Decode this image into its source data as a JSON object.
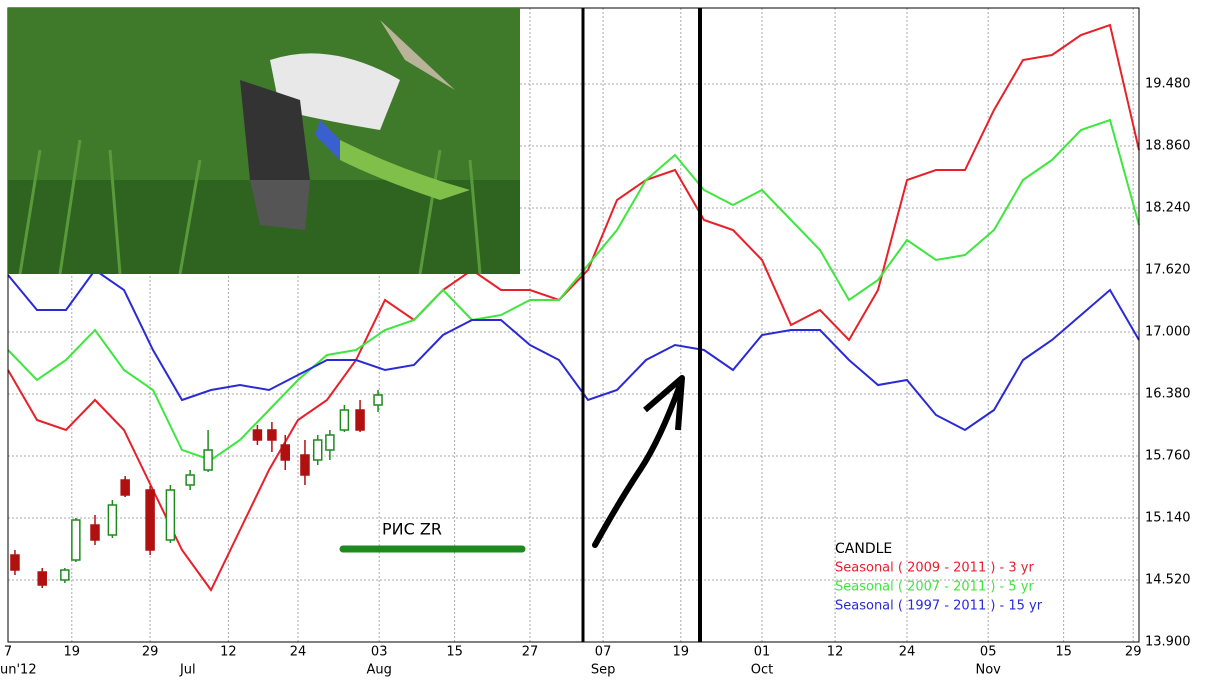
{
  "chart_data": {
    "type": "candlestick",
    "annotation": "РИС ZR",
    "legend_title": "CANDLE",
    "xlim": [
      0,
      195
    ],
    "xticks": [
      {
        "value": 0,
        "label": "7"
      },
      {
        "value": 11,
        "label": "19"
      },
      {
        "value": 24.5,
        "label": "29"
      },
      {
        "value": 38,
        "label": "12"
      },
      {
        "value": 50,
        "label": "24"
      },
      {
        "value": 64,
        "label": "03"
      },
      {
        "value": 77,
        "label": "15"
      },
      {
        "value": 90,
        "label": "27"
      },
      {
        "value": 102.6,
        "label": "07"
      },
      {
        "value": 116,
        "label": "19"
      },
      {
        "value": 130,
        "label": "01"
      },
      {
        "value": 142.6,
        "label": "12"
      },
      {
        "value": 155,
        "label": "24"
      },
      {
        "value": 169,
        "label": "05"
      },
      {
        "value": 182,
        "label": "15"
      },
      {
        "value": 194,
        "label": "29"
      }
    ],
    "months": [
      {
        "value": 0,
        "label": "un'12"
      },
      {
        "value": 31,
        "label": "Jul"
      },
      {
        "value": 64,
        "label": "Aug"
      },
      {
        "value": 102.6,
        "label": "Sep"
      },
      {
        "value": 130,
        "label": "Oct"
      },
      {
        "value": 169,
        "label": "Nov"
      }
    ],
    "ylim": [
      13.9,
      20.24
    ],
    "yticks": [
      {
        "value": 13.9,
        "label": "13.900"
      },
      {
        "value": 14.52,
        "label": "14.520"
      },
      {
        "value": 15.14,
        "label": "15.140"
      },
      {
        "value": 15.76,
        "label": "15.760"
      },
      {
        "value": 16.38,
        "label": "16.380"
      },
      {
        "value": 17.0,
        "label": "17.000"
      },
      {
        "value": 17.62,
        "label": "17.620"
      },
      {
        "value": 18.24,
        "label": "18.240"
      },
      {
        "value": 18.86,
        "label": "18.860"
      },
      {
        "value": 19.48,
        "label": "19.480"
      }
    ],
    "grid": true,
    "x": [
      0,
      5,
      10,
      15,
      20,
      25,
      30,
      35,
      40,
      45,
      50,
      55,
      60,
      65,
      70,
      75,
      80,
      85,
      90,
      95,
      100,
      105,
      110,
      115,
      120,
      125,
      130,
      135,
      140,
      145,
      150,
      155,
      160,
      165,
      170,
      175,
      180,
      185,
      190,
      195
    ],
    "series": [
      {
        "name": "Seasonal ( 2009 - 2011 ) - 3 yr",
        "color": "#e8202a",
        "values": [
          16.62,
          16.12,
          16.02,
          16.32,
          16.02,
          15.42,
          14.82,
          14.42,
          15.02,
          15.62,
          16.12,
          16.32,
          16.72,
          17.32,
          17.12,
          17.42,
          17.62,
          17.42,
          17.42,
          17.32,
          17.62,
          18.32,
          18.52,
          18.62,
          18.12,
          18.02,
          17.72,
          17.07,
          17.22,
          16.92,
          17.42,
          18.52,
          18.62,
          18.62,
          19.22,
          19.72,
          19.77,
          19.97,
          20.07,
          18.82
        ]
      },
      {
        "name": "Seasonal ( 2007 - 2011 ) - 5 yr",
        "color": "#3ee63e",
        "values": [
          16.82,
          16.52,
          16.72,
          17.02,
          16.62,
          16.42,
          15.82,
          15.72,
          15.92,
          16.22,
          16.52,
          16.77,
          16.82,
          17.02,
          17.12,
          17.42,
          17.12,
          17.17,
          17.32,
          17.32,
          17.67,
          18.02,
          18.52,
          18.77,
          18.42,
          18.27,
          18.42,
          18.12,
          17.82,
          17.32,
          17.52,
          17.92,
          17.72,
          17.77,
          18.02,
          18.52,
          18.72,
          19.02,
          19.12,
          18.07
        ]
      },
      {
        "name": "Seasonal ( 1997 - 2011 ) - 15 yr",
        "color": "#2a2ad6",
        "values": [
          17.57,
          17.22,
          17.22,
          17.62,
          17.42,
          16.82,
          16.32,
          16.42,
          16.47,
          16.42,
          16.57,
          16.72,
          16.72,
          16.62,
          16.67,
          16.97,
          17.12,
          17.12,
          16.87,
          16.72,
          16.32,
          16.42,
          16.72,
          16.87,
          16.82,
          16.62,
          16.97,
          17.02,
          17.02,
          16.72,
          16.47,
          16.52,
          16.17,
          16.02,
          16.22,
          16.72,
          16.92,
          17.17,
          17.42,
          16.92
        ]
      }
    ],
    "candles": {
      "up_color": "#1e8a1e",
      "down_color": "#b01010",
      "x": [
        1.2,
        5.9,
        9.8,
        11.7,
        15,
        18,
        20.2,
        24.5,
        28,
        31.4,
        34.5,
        43,
        45.5,
        47.8,
        51.2,
        53.4,
        55.5,
        58,
        60.7,
        63.8
      ],
      "open": [
        14.77,
        14.6,
        14.52,
        14.72,
        15.07,
        14.97,
        15.52,
        15.42,
        14.92,
        15.47,
        15.62,
        16.02,
        16.02,
        15.87,
        15.77,
        15.72,
        15.82,
        16.02,
        16.22,
        16.27
      ],
      "high": [
        14.82,
        14.64,
        14.64,
        15.14,
        15.17,
        15.32,
        15.56,
        15.46,
        15.47,
        15.62,
        16.02,
        16.07,
        16.1,
        15.97,
        15.92,
        15.97,
        16.02,
        16.27,
        16.32,
        16.42
      ],
      "low": [
        14.57,
        14.44,
        14.49,
        14.7,
        14.87,
        14.94,
        15.35,
        14.77,
        14.89,
        15.42,
        15.6,
        15.87,
        15.8,
        15.62,
        15.47,
        15.67,
        15.72,
        16.0,
        16.0,
        16.2
      ],
      "close": [
        14.62,
        14.47,
        14.62,
        15.12,
        14.92,
        15.27,
        15.37,
        14.82,
        15.42,
        15.57,
        15.82,
        15.92,
        15.92,
        15.72,
        15.57,
        15.92,
        15.97,
        16.22,
        16.02,
        16.37
      ]
    }
  }
}
